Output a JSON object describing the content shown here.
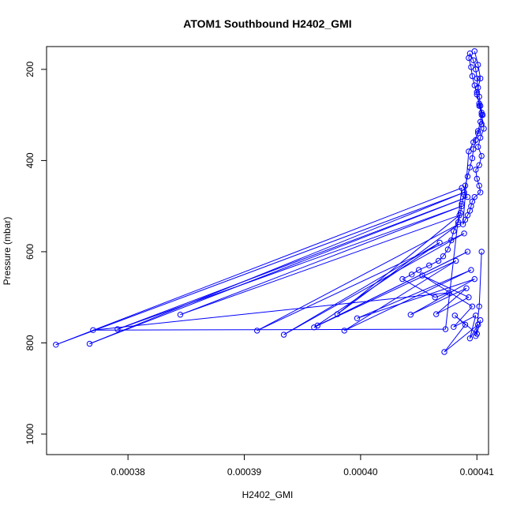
{
  "chart_data": {
    "type": "scatter",
    "title": "ATOM1 Southbound H2402_GMI",
    "xlabel": "H2402_GMI",
    "ylabel": "Pressure (mbar)",
    "xlim": [
      0.000373,
      0.000411
    ],
    "ylim": [
      1045,
      150
    ],
    "y_reversed": true,
    "x_ticks": [
      0.00038,
      0.00039,
      0.0004,
      0.00041
    ],
    "x_tick_labels": [
      "0.00038",
      "0.00039",
      "0.00040",
      "0.00041"
    ],
    "y_ticks": [
      200,
      400,
      600,
      800,
      1000
    ],
    "y_tick_labels": [
      "200",
      "400",
      "600",
      "800",
      "1000"
    ],
    "grid": false,
    "legend": false,
    "color": "#0000ff",
    "marker": "open-circle",
    "line_connected": true,
    "series": [
      {
        "x": [
          0.0004098,
          0.0004101,
          0.0004103,
          0.00041,
          0.0004102,
          0.0004104,
          0.0004106,
          0.0004103,
          0.0004101,
          0.0004104,
          0.0004102,
          0.0004099,
          0.00041,
          0.0004102,
          0.0004103,
          0.0004098,
          0.0004096,
          0.0004095,
          0.0004094,
          0.0004092,
          0.000409,
          0.0004088,
          0.0004093,
          0.0004097,
          0.0004101,
          0.0004104,
          0.0004105,
          0.0004103,
          0.0004102,
          0.0004101,
          0.00041,
          0.0004099,
          0.0004097,
          0.0004094,
          0.0004093,
          0.0004095,
          0.0004096,
          0.0004098,
          0.00041,
          0.0004102,
          0.0004104,
          0.0004103,
          0.0004101,
          0.0004099,
          0.0004097,
          0.0004096,
          0.0004094,
          0.0004092,
          0.000409,
          0.0004089,
          0.0004087,
          0.0004086,
          0.0004084,
          0.000408,
          0.0004078,
          0.0004075,
          0.0004071,
          0.0004067,
          0.0004059,
          0.000405,
          0.0004044,
          0.0004036,
          0.0004064,
          0.0004076,
          0.000377,
          0.0004073,
          0.0004087,
          0.0003738,
          0.0004089,
          0.0003767,
          0.0004092,
          0.0003791,
          0.0004087,
          0.0003845,
          0.0004085,
          0.000398,
          0.0004084,
          0.0003911,
          0.0004089,
          0.0003934,
          0.0004068,
          0.000396,
          0.0004092,
          0.0003963,
          0.0004082,
          0.0003986,
          0.0004095,
          0.0003997,
          0.0004098,
          0.0004043,
          0.0004091,
          0.0004065,
          0.0004093,
          0.0004053,
          0.0004096,
          0.000408,
          0.0004099,
          0.0004094,
          0.0004101,
          0.0004072,
          0.000409,
          0.0004081,
          0.00041,
          0.0004103,
          0.0004099,
          0.0004102,
          0.0004104
        ],
        "y": [
          160,
          190,
          220,
          250,
          280,
          300,
          330,
          350,
          370,
          390,
          410,
          420,
          440,
          455,
          470,
          480,
          490,
          500,
          510,
          520,
          530,
          540,
          380,
          360,
          340,
          320,
          300,
          280,
          260,
          240,
          220,
          200,
          180,
          165,
          175,
          195,
          215,
          235,
          255,
          275,
          295,
          315,
          335,
          355,
          375,
          395,
          415,
          435,
          455,
          475,
          495,
          515,
          535,
          555,
          575,
          595,
          610,
          620,
          630,
          640,
          650,
          660,
          700,
          690,
          772,
          770,
          460,
          804,
          470,
          802,
          480,
          770,
          500,
          738,
          520,
          737,
          540,
          773,
          560,
          782,
          580,
          766,
          600,
          762,
          620,
          773,
          640,
          746,
          660,
          738,
          680,
          737,
          700,
          652,
          720,
          765,
          740,
          790,
          760,
          820,
          760,
          740,
          780,
          750,
          785,
          720,
          600
        ]
      }
    ]
  }
}
